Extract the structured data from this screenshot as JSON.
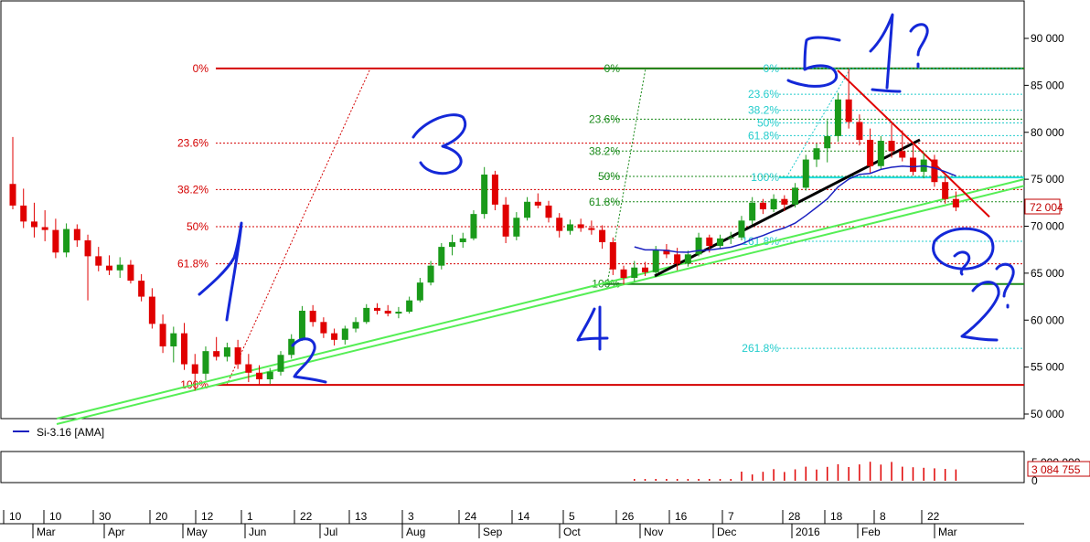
{
  "chart_data": {
    "type": "candlestick",
    "title": "",
    "xlabel": "",
    "ylabel": "",
    "ylim": [
      50000,
      93000
    ],
    "y_ticks": [
      "90 000",
      "85 000",
      "80 000",
      "75 000",
      "70 000",
      "65 000",
      "60 000",
      "55 000",
      "50 000"
    ],
    "y_tick_values": [
      90000,
      85000,
      80000,
      75000,
      70000,
      65000,
      60000,
      55000,
      50000
    ],
    "last_price_label": "72 004",
    "last_price": 72004,
    "legend": {
      "entries": [
        {
          "name": "Si-3.16 [AMA]",
          "color": "#1a20c0"
        }
      ],
      "placement": "bottom-left"
    },
    "volume_axis": {
      "label": "3 084 755",
      "value": 3084755,
      "top_tick": "5 000 000",
      "zero_tick": "0"
    },
    "x_axis": {
      "day_ticks": [
        "10",
        "10",
        "30",
        "20",
        "12",
        "1",
        "22",
        "13",
        "3",
        "24",
        "14",
        "5",
        "26",
        "16",
        "7",
        "28",
        "18",
        "8",
        "22"
      ],
      "month_ticks": [
        "Mar",
        "Apr",
        "May",
        "Jun",
        "Jul",
        "Aug",
        "Sep",
        "Oct",
        "Nov",
        "Dec",
        "2016",
        "Feb",
        "Mar"
      ]
    },
    "fib_sets": [
      {
        "name": "set1",
        "color": "#d40000",
        "high": 86800,
        "low": 53100,
        "levels": [
          {
            "label": "0%",
            "value": 86800
          },
          {
            "label": "23.6%",
            "value": 78850
          },
          {
            "label": "38.2%",
            "value": 73900
          },
          {
            "label": "50%",
            "value": 69950
          },
          {
            "label": "61.8%",
            "value": 66000
          },
          {
            "label": "100%",
            "value": 53100
          }
        ]
      },
      {
        "name": "set2",
        "color": "#1a8a1a",
        "high": 86800,
        "low": 63850,
        "levels": [
          {
            "label": "0%",
            "value": 86800
          },
          {
            "label": "23.6%",
            "value": 81400
          },
          {
            "label": "38.2%",
            "value": 78000
          },
          {
            "label": "50%",
            "value": 75300
          },
          {
            "label": "61.8%",
            "value": 72600
          },
          {
            "label": "100%",
            "value": 63850
          }
        ]
      },
      {
        "name": "set3",
        "color": "#22cccc",
        "high": 86800,
        "low": 75200,
        "levels": [
          {
            "label": "0%",
            "value": 86800
          },
          {
            "label": "23.6%",
            "value": 84050
          },
          {
            "label": "38.2%",
            "value": 82350
          },
          {
            "label": "50%",
            "value": 81000
          },
          {
            "label": "61.8%",
            "value": 79650
          },
          {
            "label": "100%",
            "value": 75200
          },
          {
            "label": "161.8%",
            "value": 68400
          },
          {
            "label": "261.8%",
            "value": 57000
          }
        ]
      }
    ],
    "annotations": [
      "1",
      "2",
      "3",
      "4",
      "5",
      "1?",
      "2?"
    ],
    "candles": [
      [
        0,
        74500,
        79500,
        71800,
        72200
      ],
      [
        1,
        72200,
        74000,
        69800,
        70500
      ],
      [
        2,
        70500,
        72500,
        68800,
        69900
      ],
      [
        3,
        69900,
        71700,
        68400,
        69600
      ],
      [
        4,
        69600,
        70800,
        66600,
        67200
      ],
      [
        5,
        67200,
        70300,
        66700,
        69700
      ],
      [
        6,
        69700,
        70200,
        67800,
        68500
      ],
      [
        7,
        68500,
        69100,
        62100,
        66800
      ],
      [
        8,
        66800,
        67800,
        65200,
        65800
      ],
      [
        9,
        65800,
        66900,
        64800,
        65300
      ],
      [
        10,
        65300,
        66700,
        64500,
        65900
      ],
      [
        11,
        65900,
        66400,
        63900,
        64200
      ],
      [
        12,
        64200,
        64900,
        62000,
        62500
      ],
      [
        13,
        62500,
        63400,
        59100,
        59600
      ],
      [
        14,
        59600,
        60600,
        56500,
        57200
      ],
      [
        15,
        57200,
        59300,
        55500,
        58600
      ],
      [
        16,
        58600,
        59700,
        54700,
        55300
      ],
      [
        17,
        55300,
        56400,
        52500,
        54300
      ],
      [
        18,
        54300,
        57200,
        53600,
        56700
      ],
      [
        19,
        56700,
        58200,
        55700,
        56100
      ],
      [
        20,
        56100,
        57600,
        55600,
        57100
      ],
      [
        21,
        57100,
        57900,
        54800,
        55300
      ],
      [
        22,
        55300,
        56400,
        53400,
        54400
      ],
      [
        23,
        54400,
        55200,
        53100,
        53700
      ],
      [
        24,
        53700,
        54900,
        53200,
        54500
      ],
      [
        25,
        54500,
        56700,
        54100,
        56300
      ],
      [
        26,
        56300,
        58500,
        55900,
        58000
      ],
      [
        27,
        58000,
        61500,
        57800,
        61000
      ],
      [
        28,
        61000,
        61600,
        59300,
        59800
      ],
      [
        29,
        59800,
        60300,
        58100,
        58600
      ],
      [
        30,
        58600,
        59100,
        57300,
        57900
      ],
      [
        31,
        57900,
        59400,
        57400,
        59100
      ],
      [
        32,
        59100,
        60300,
        58700,
        59800
      ],
      [
        33,
        59800,
        61700,
        59600,
        61300
      ],
      [
        34,
        61300,
        61800,
        60600,
        61000
      ],
      [
        35,
        61000,
        61600,
        60400,
        60700
      ],
      [
        36,
        60700,
        61400,
        60200,
        60900
      ],
      [
        37,
        60900,
        62500,
        60700,
        62100
      ],
      [
        38,
        62100,
        64500,
        61900,
        64000
      ],
      [
        39,
        64000,
        66300,
        63700,
        65800
      ],
      [
        40,
        65800,
        68200,
        65400,
        67800
      ],
      [
        41,
        67800,
        69100,
        66900,
        68300
      ],
      [
        42,
        68300,
        69300,
        67700,
        68700
      ],
      [
        43,
        68700,
        71700,
        68500,
        71300
      ],
      [
        44,
        71300,
        76300,
        70800,
        75500
      ],
      [
        45,
        75500,
        75900,
        71700,
        72300
      ],
      [
        46,
        72300,
        73100,
        68200,
        68900
      ],
      [
        47,
        68900,
        71500,
        68500,
        70900
      ],
      [
        48,
        70900,
        73100,
        70600,
        72600
      ],
      [
        49,
        72600,
        73500,
        71900,
        72200
      ],
      [
        50,
        72200,
        72700,
        70400,
        70900
      ],
      [
        51,
        70900,
        71400,
        68800,
        69500
      ],
      [
        52,
        69500,
        70700,
        69100,
        70200
      ],
      [
        53,
        70200,
        70800,
        69400,
        69800
      ],
      [
        54,
        69800,
        70600,
        69100,
        69600
      ],
      [
        55,
        69600,
        70100,
        67600,
        68300
      ],
      [
        56,
        68300,
        68800,
        64800,
        65400
      ],
      [
        57,
        65400,
        65800,
        63800,
        64500
      ],
      [
        58,
        64500,
        66300,
        64100,
        65600
      ],
      [
        59,
        65600,
        66200,
        64700,
        65100
      ],
      [
        60,
        65100,
        67900,
        64900,
        67500
      ],
      [
        61,
        67500,
        68100,
        66600,
        67000
      ],
      [
        62,
        67000,
        67700,
        65300,
        66000
      ],
      [
        63,
        66000,
        67400,
        65700,
        67000
      ],
      [
        64,
        67000,
        69300,
        66800,
        68800
      ],
      [
        65,
        68800,
        69100,
        67200,
        67900
      ],
      [
        66,
        67900,
        69100,
        67600,
        68700
      ],
      [
        67,
        68700,
        69400,
        68100,
        68800
      ],
      [
        68,
        68800,
        71100,
        68500,
        70600
      ],
      [
        69,
        70600,
        73100,
        70200,
        72500
      ],
      [
        70,
        72500,
        72900,
        71300,
        71800
      ],
      [
        71,
        71800,
        73400,
        71500,
        72900
      ],
      [
        72,
        72900,
        73300,
        71600,
        72300
      ],
      [
        73,
        72300,
        74600,
        72000,
        74100
      ],
      [
        74,
        74100,
        77600,
        73800,
        77100
      ],
      [
        75,
        77100,
        78800,
        76300,
        78300
      ],
      [
        76,
        78300,
        81300,
        76800,
        79600
      ],
      [
        77,
        79600,
        84200,
        79000,
        83500
      ],
      [
        78,
        83500,
        86800,
        80400,
        81100
      ],
      [
        79,
        81100,
        81900,
        78600,
        79200
      ],
      [
        80,
        79200,
        80400,
        75600,
        76400
      ],
      [
        81,
        76400,
        79600,
        76100,
        79100
      ],
      [
        82,
        79100,
        80900,
        77300,
        78000
      ],
      [
        83,
        78000,
        80200,
        76900,
        77300
      ],
      [
        84,
        77300,
        78600,
        75400,
        75800
      ],
      [
        85,
        75800,
        77800,
        75100,
        77100
      ],
      [
        86,
        77100,
        77600,
        74200,
        74700
      ],
      [
        87,
        74700,
        75300,
        72400,
        72900
      ],
      [
        88,
        72900,
        73700,
        71600,
        72004
      ]
    ]
  }
}
